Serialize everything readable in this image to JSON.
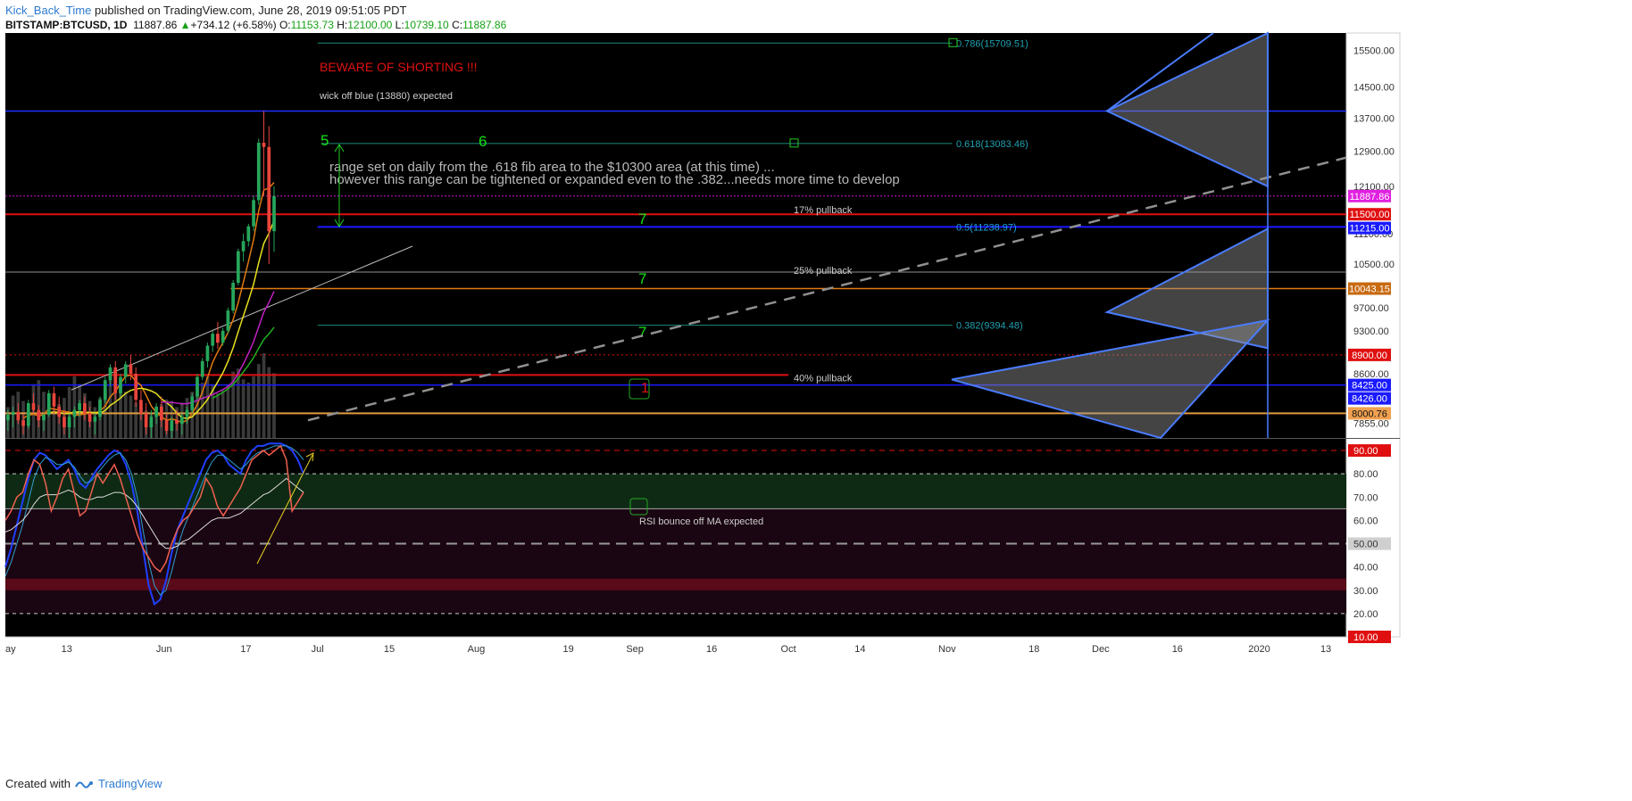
{
  "header": {
    "author": "Kick_Back_Time",
    "published": " published on TradingView.com, June 28, 2019 09:51:05 PDT",
    "symbol": "BITSTAMP:BTCUSD, 1D",
    "last": "11887.86",
    "change": "+734.12 (+6.58%)",
    "o_label": "O:",
    "o": "11153.73",
    "h_label": "H:",
    "h": "12100.00",
    "l_label": "L:",
    "l": "10739.10",
    "c_label": "C:",
    "c": "11887.86"
  },
  "footer": {
    "created_with": "Created with",
    "brand": "TradingView"
  },
  "colors": {
    "background": "#000000",
    "up": "#26a65b",
    "down": "#e8453c",
    "blue_line": "#1a1aff",
    "red_line": "#e01010",
    "orange": "#e07a10",
    "teal": "#1a8a8a",
    "text_green": "#18e018"
  },
  "chart_data": {
    "type": "candlestick",
    "price_axis": {
      "min": 7650,
      "max": 16000,
      "scale": "log",
      "ticks": [
        "15500.00",
        "14500.00",
        "13700.00",
        "12900.00",
        "12100.00",
        "11100.00",
        "10500.00",
        "9700.00",
        "9300.00",
        "8600.00",
        "7855.00"
      ]
    },
    "time_axis": {
      "labels": [
        {
          "text": "ay",
          "day": 0
        },
        {
          "text": "13",
          "day": 12
        },
        {
          "text": "Jun",
          "day": 31
        },
        {
          "text": "17",
          "day": 47
        },
        {
          "text": "Jul",
          "day": 61
        },
        {
          "text": "15",
          "day": 75
        },
        {
          "text": "Aug",
          "day": 92
        },
        {
          "text": "19",
          "day": 110
        },
        {
          "text": "Sep",
          "day": 123
        },
        {
          "text": "16",
          "day": 138
        },
        {
          "text": "Oct",
          "day": 153
        },
        {
          "text": "14",
          "day": 167
        },
        {
          "text": "Nov",
          "day": 184
        },
        {
          "text": "18",
          "day": 201
        },
        {
          "text": "Dec",
          "day": 214
        },
        {
          "text": "16",
          "day": 229
        },
        {
          "text": "2020",
          "day": 245
        },
        {
          "text": "13",
          "day": 258
        }
      ],
      "day_span": 262
    },
    "candles": [
      [
        7900,
        8050,
        7750,
        7980
      ],
      [
        7980,
        8100,
        7800,
        8020
      ],
      [
        8020,
        8150,
        7850,
        7900
      ],
      [
        7900,
        7990,
        7700,
        7820
      ],
      [
        7820,
        8200,
        7780,
        8150
      ],
      [
        8150,
        8300,
        8000,
        8050
      ],
      [
        8050,
        8120,
        7800,
        7900
      ],
      [
        7900,
        8000,
        7750,
        7980
      ],
      [
        7980,
        8350,
        7950,
        8300
      ],
      [
        8300,
        8400,
        8000,
        8100
      ],
      [
        8100,
        8250,
        7850,
        7950
      ],
      [
        7950,
        8050,
        7700,
        7800
      ],
      [
        7800,
        8000,
        7650,
        7950
      ],
      [
        7950,
        8100,
        7800,
        8050
      ],
      [
        8050,
        8200,
        7950,
        8150
      ],
      [
        8150,
        8250,
        7900,
        8000
      ],
      [
        8000,
        8100,
        7800,
        7880
      ],
      [
        7880,
        8000,
        7700,
        7950
      ],
      [
        7950,
        8250,
        7900,
        8200
      ],
      [
        8200,
        8550,
        8150,
        8500
      ],
      [
        8500,
        8750,
        8400,
        8700
      ],
      [
        8700,
        8800,
        8200,
        8300
      ],
      [
        8300,
        8600,
        8250,
        8550
      ],
      [
        8550,
        8800,
        8450,
        8750
      ],
      [
        8750,
        8900,
        8500,
        8600
      ],
      [
        8600,
        8700,
        8100,
        8200
      ],
      [
        8200,
        8350,
        7900,
        8000
      ],
      [
        8000,
        8150,
        7700,
        7800
      ],
      [
        7800,
        8050,
        7650,
        7950
      ],
      [
        7950,
        8150,
        7850,
        8100
      ],
      [
        8100,
        8250,
        7800,
        7900
      ],
      [
        7900,
        8000,
        7700,
        7750
      ],
      [
        7750,
        7950,
        7650,
        7900
      ],
      [
        7900,
        8050,
        7750,
        7850
      ],
      [
        7850,
        8000,
        7700,
        7950
      ],
      [
        7950,
        8100,
        7850,
        8050
      ],
      [
        8050,
        8300,
        8000,
        8250
      ],
      [
        8250,
        8600,
        8200,
        8550
      ],
      [
        8550,
        8850,
        8500,
        8800
      ],
      [
        8800,
        9100,
        8700,
        9050
      ],
      [
        9050,
        9300,
        8950,
        9250
      ],
      [
        9250,
        9450,
        9000,
        9100
      ],
      [
        9100,
        9350,
        9050,
        9300
      ],
      [
        9300,
        9700,
        9250,
        9650
      ],
      [
        9650,
        10200,
        9600,
        10150
      ],
      [
        10150,
        10800,
        10100,
        10750
      ],
      [
        10750,
        11100,
        10550,
        10950
      ],
      [
        10950,
        11300,
        10850,
        11250
      ],
      [
        11250,
        11900,
        11150,
        11800
      ],
      [
        11800,
        13200,
        11700,
        13100
      ],
      [
        13100,
        13880,
        11900,
        13000
      ],
      [
        13000,
        13500,
        10500,
        11150
      ],
      [
        11150,
        12100,
        10739,
        11887
      ]
    ],
    "levels": [
      {
        "label": "0.786(15709.51)",
        "price": 15709.51,
        "from_day": 61,
        "to_day": 185
      },
      {
        "label": "wick off blue (13880) expected",
        "price": 13880
      },
      {
        "label": "0.618(13083.46)",
        "price": 13083.46,
        "from_day": 61,
        "to_day": 185
      },
      {
        "label": "11887.86",
        "price": 11887.86
      },
      {
        "label": "11500.00",
        "price": 11500.0
      },
      {
        "label": "17% pullback",
        "price": 11500.0
      },
      {
        "label": "0.5(11238.97)",
        "price": 11238.97
      },
      {
        "label": "11215.00",
        "price": 11215.0
      },
      {
        "label": "25% pullback",
        "price": 10350
      },
      {
        "label": "10043.15",
        "price": 10043.15
      },
      {
        "label": "0.382(9394.48)",
        "price": 9394.48
      },
      {
        "label": "8900.00",
        "price": 8900.0
      },
      {
        "label": "40% pullback",
        "price": 8580
      },
      {
        "label": "8425.00",
        "price": 8425.0
      },
      {
        "label": "8426.00",
        "price": 8426.0
      },
      {
        "label": "8000.76",
        "price": 8000.76
      }
    ],
    "annotations": {
      "beware": "BEWARE OF SHORTING !!!",
      "wick": "wick off blue (13880) expected",
      "range1": "range set on daily from the .618 fib area to the $10300 area (at this time)  ...",
      "range2": "however this range can be tightened or expanded even to the .382...needs more time to develop",
      "wave5": "5",
      "wave6": "6",
      "wave7": "7",
      "wave1": "1",
      "rsi_note": "RSI bounce off MA expected"
    },
    "rsi": {
      "min": 10,
      "max": 95,
      "ticks": [
        "90.00",
        "80.00",
        "70.00",
        "60.00",
        "50.00",
        "40.00",
        "30.00",
        "20.00",
        "10.00"
      ],
      "k": [
        40,
        48,
        58,
        68,
        78,
        86,
        89,
        88,
        85,
        82,
        84,
        86,
        82,
        76,
        74,
        78,
        82,
        85,
        88,
        90,
        89,
        84,
        76,
        64,
        48,
        32,
        24,
        26,
        34,
        46,
        56,
        62,
        68,
        74,
        80,
        86,
        89,
        90,
        88,
        84,
        82,
        80,
        86,
        90,
        92,
        92,
        93,
        93,
        93,
        92,
        90,
        86,
        80
      ],
      "d": [
        36,
        42,
        50,
        58,
        68,
        78,
        84,
        87,
        86,
        84,
        84,
        85,
        83,
        79,
        76,
        77,
        80,
        83,
        86,
        88,
        89,
        86,
        80,
        70,
        56,
        42,
        32,
        28,
        30,
        38,
        48,
        56,
        62,
        68,
        74,
        80,
        85,
        88,
        88,
        86,
        84,
        82,
        84,
        87,
        89,
        90,
        91,
        92,
        92,
        92,
        91,
        89,
        86
      ],
      "rsi": [
        60,
        64,
        70,
        72,
        80,
        86,
        84,
        76,
        64,
        70,
        78,
        82,
        72,
        62,
        64,
        72,
        80,
        76,
        80,
        84,
        78,
        70,
        62,
        54,
        48,
        44,
        40,
        38,
        42,
        50,
        56,
        60,
        62,
        66,
        70,
        78,
        74,
        66,
        62,
        66,
        70,
        74,
        80,
        86,
        88,
        90,
        88,
        90,
        92,
        86,
        64,
        68,
        72
      ],
      "ma": [
        55,
        56,
        58,
        60,
        63,
        67,
        70,
        71,
        71,
        71,
        72,
        73,
        72,
        70,
        69,
        69,
        70,
        70,
        71,
        72,
        72,
        71,
        69,
        66,
        62,
        58,
        54,
        50,
        48,
        48,
        49,
        51,
        52,
        54,
        56,
        58,
        60,
        61,
        61,
        61,
        62,
        63,
        65,
        67,
        69,
        71,
        72,
        74,
        76,
        78,
        76,
        74,
        72
      ]
    },
    "volume": [
      40,
      55,
      60,
      48,
      38,
      70,
      75,
      60,
      45,
      38,
      44,
      52,
      66,
      80,
      70,
      58,
      48,
      40,
      52,
      64,
      80,
      88,
      70,
      60,
      55,
      46,
      40,
      36,
      32,
      38,
      44,
      50,
      48,
      40,
      46,
      52,
      60,
      66,
      72,
      80,
      70,
      58,
      62,
      70,
      86,
      90,
      76,
      72,
      80,
      96,
      110,
      92,
      84
    ]
  }
}
